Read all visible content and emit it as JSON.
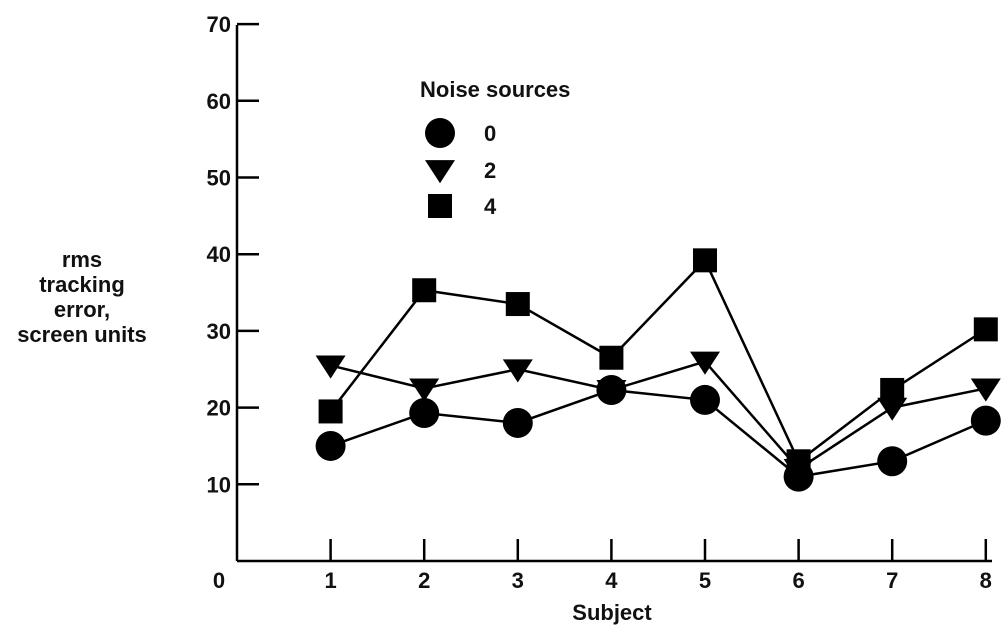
{
  "chart_data": {
    "type": "line",
    "xlabel": "Subject",
    "ylabel": [
      "rms",
      "tracking",
      "error,",
      "screen units"
    ],
    "x": [
      1,
      2,
      3,
      4,
      5,
      6,
      7,
      8
    ],
    "xticks": [
      "1",
      "2",
      "3",
      "4",
      "5",
      "6",
      "7",
      "8"
    ],
    "origin_label": "0",
    "yticks": [
      "10",
      "20",
      "30",
      "40",
      "50",
      "60",
      "70"
    ],
    "ylim": [
      0,
      70
    ],
    "xlim": [
      0,
      8
    ],
    "grid": false,
    "legend": {
      "title": "Noise sources",
      "placement": "top-left"
    },
    "series": [
      {
        "name": "0",
        "marker": "circle",
        "values": [
          15,
          19.3,
          18,
          22.3,
          21,
          11,
          13,
          18.3
        ]
      },
      {
        "name": "2",
        "marker": "triangle-down",
        "values": [
          25.5,
          22.5,
          25,
          22.3,
          26,
          12,
          20,
          22.5
        ]
      },
      {
        "name": "4",
        "marker": "square",
        "values": [
          19.5,
          35.3,
          33.5,
          26.5,
          39.2,
          13,
          22.3,
          30.2
        ]
      }
    ],
    "colors": {
      "ink": "#000000"
    }
  }
}
